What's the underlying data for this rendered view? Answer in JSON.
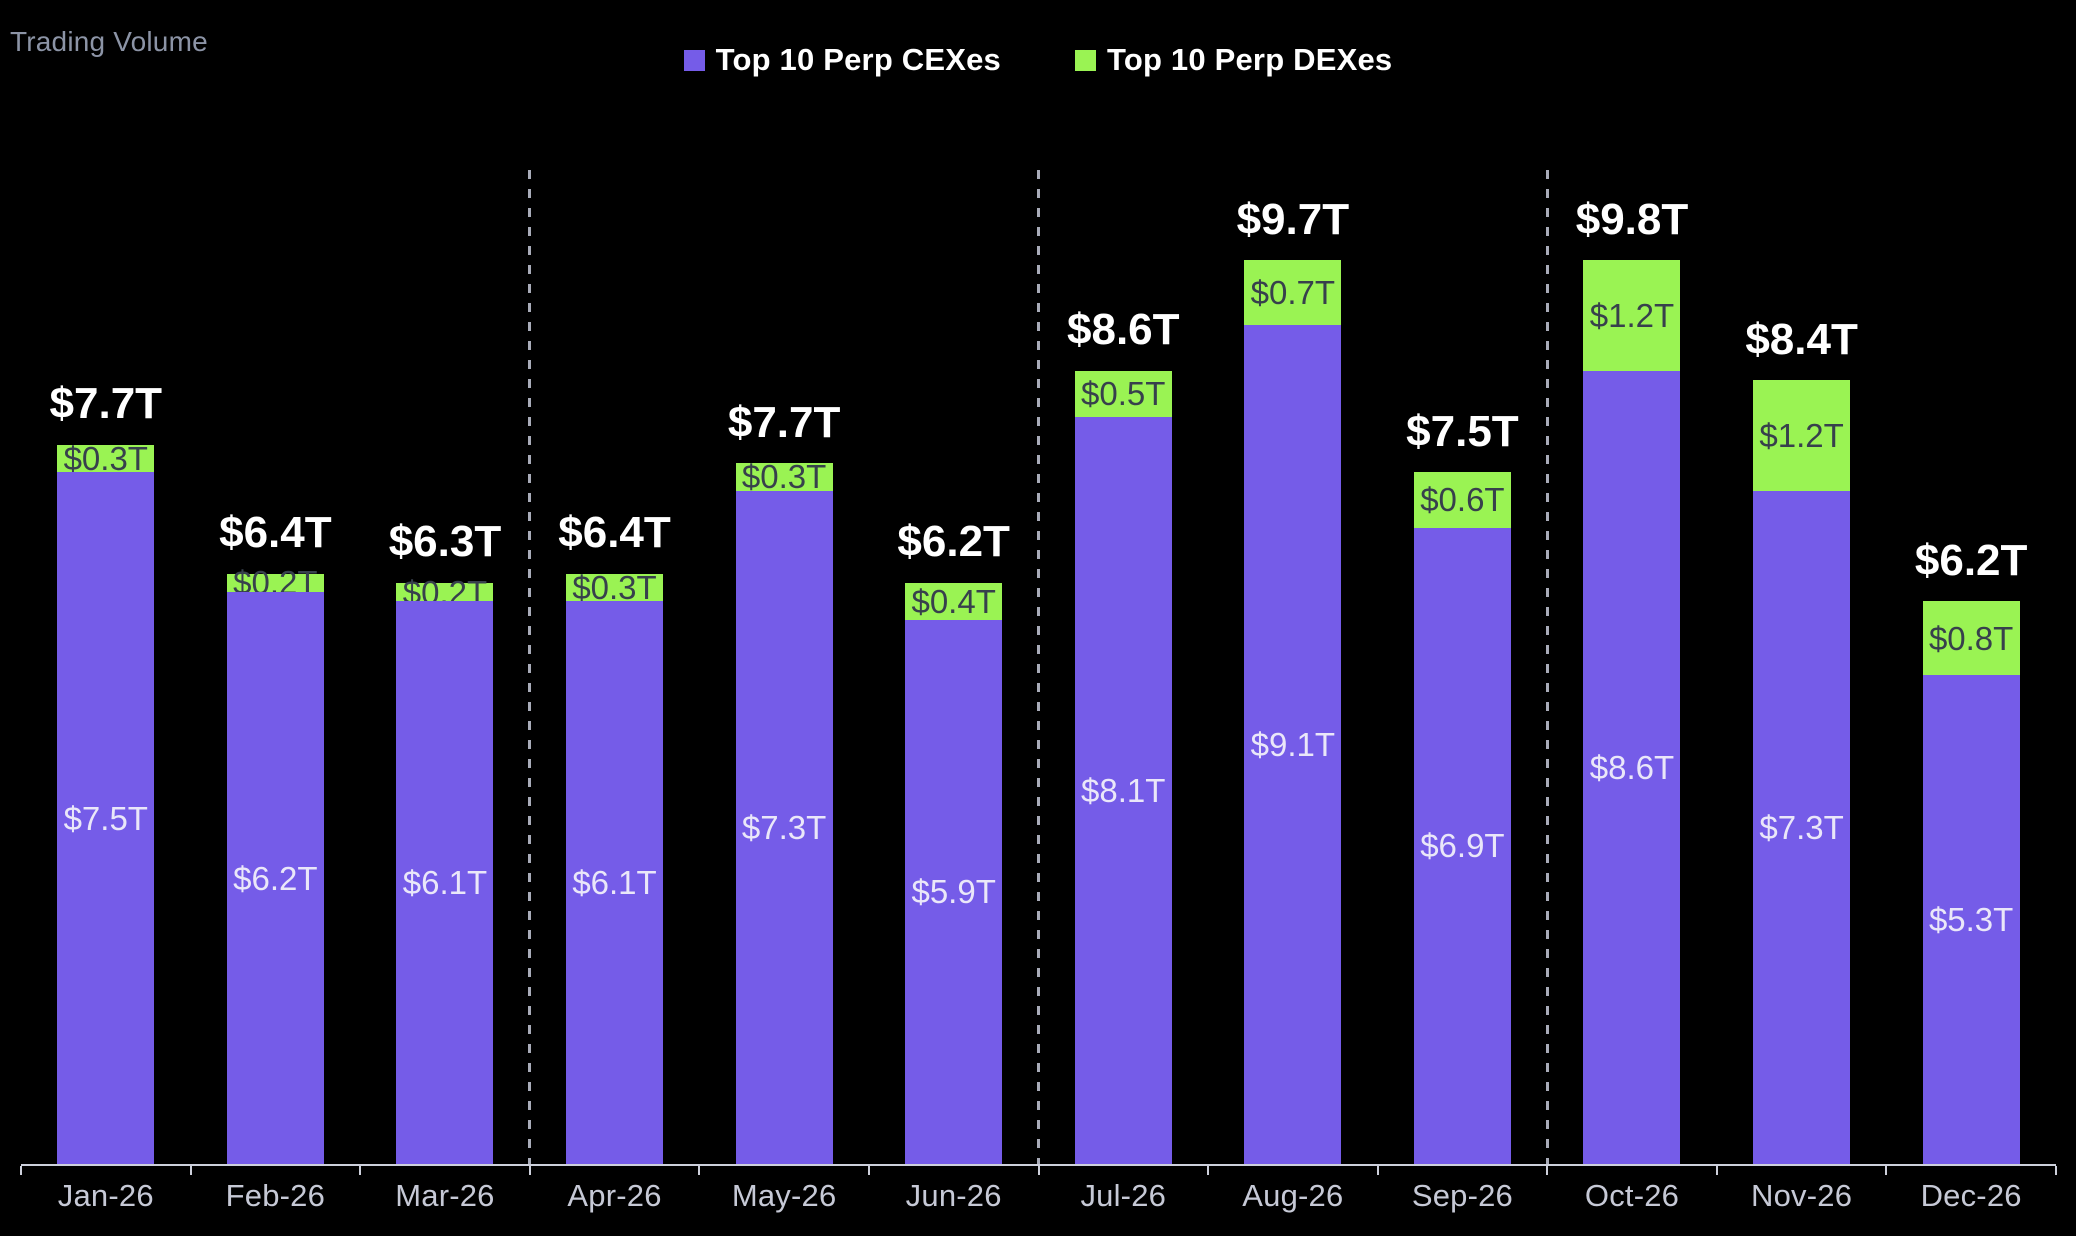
{
  "title": "Trading Volume",
  "legend": {
    "cex": {
      "label": "Top 10 Perp CEXes",
      "color": "#755CE8"
    },
    "dex": {
      "label": "Top 10 Perp DEXes",
      "color": "#9AF353"
    }
  },
  "chart_data": {
    "type": "bar",
    "stacked": true,
    "title": "Trading Volume",
    "unit": "trillion USD",
    "categories": [
      "Jan-26",
      "Feb-26",
      "Mar-26",
      "Apr-26",
      "May-26",
      "Jun-26",
      "Jul-26",
      "Aug-26",
      "Sep-26",
      "Oct-26",
      "Nov-26",
      "Dec-26"
    ],
    "series": [
      {
        "name": "Top 10 Perp CEXes",
        "color": "#755CE8",
        "values": [
          7.5,
          6.2,
          6.1,
          6.1,
          7.3,
          5.9,
          8.1,
          9.1,
          6.9,
          8.6,
          7.3,
          5.3
        ],
        "labels": [
          "$7.5T",
          "$6.2T",
          "$6.1T",
          "$6.1T",
          "$7.3T",
          "$5.9T",
          "$8.1T",
          "$9.1T",
          "$6.9T",
          "$8.6T",
          "$7.3T",
          "$5.3T"
        ]
      },
      {
        "name": "Top 10 Perp DEXes",
        "color": "#9AF353",
        "values": [
          0.3,
          0.2,
          0.2,
          0.3,
          0.3,
          0.4,
          0.5,
          0.7,
          0.6,
          1.2,
          1.2,
          0.8
        ],
        "labels": [
          "$0.3T",
          "$0.2T",
          "$0.2T",
          "$0.3T",
          "$0.3T",
          "$0.4T",
          "$0.5T",
          "$0.7T",
          "$0.6T",
          "$1.2T",
          "$1.2T",
          "$0.8T"
        ]
      }
    ],
    "total_labels": [
      "$7.7T",
      "$6.4T",
      "$6.3T",
      "$6.4T",
      "$7.7T",
      "$6.2T",
      "$8.6T",
      "$9.7T",
      "$7.5T",
      "$9.8T",
      "$8.4T",
      "$6.2T"
    ],
    "quarter_separators_after_index": [
      2,
      5,
      8
    ],
    "ylim": [
      0,
      9.8
    ],
    "grid": false,
    "legend_position": "top-center"
  },
  "colors": {
    "background": "#000000",
    "axis": "#CDD0DB",
    "tick_label": "#C6C9D6",
    "title": "#8C94A6",
    "separator": "#A9ACB9",
    "total_label_text": "#FFFFFF",
    "cex_label_text": "#EAE7F9",
    "dex_label_text": "#37404C"
  }
}
